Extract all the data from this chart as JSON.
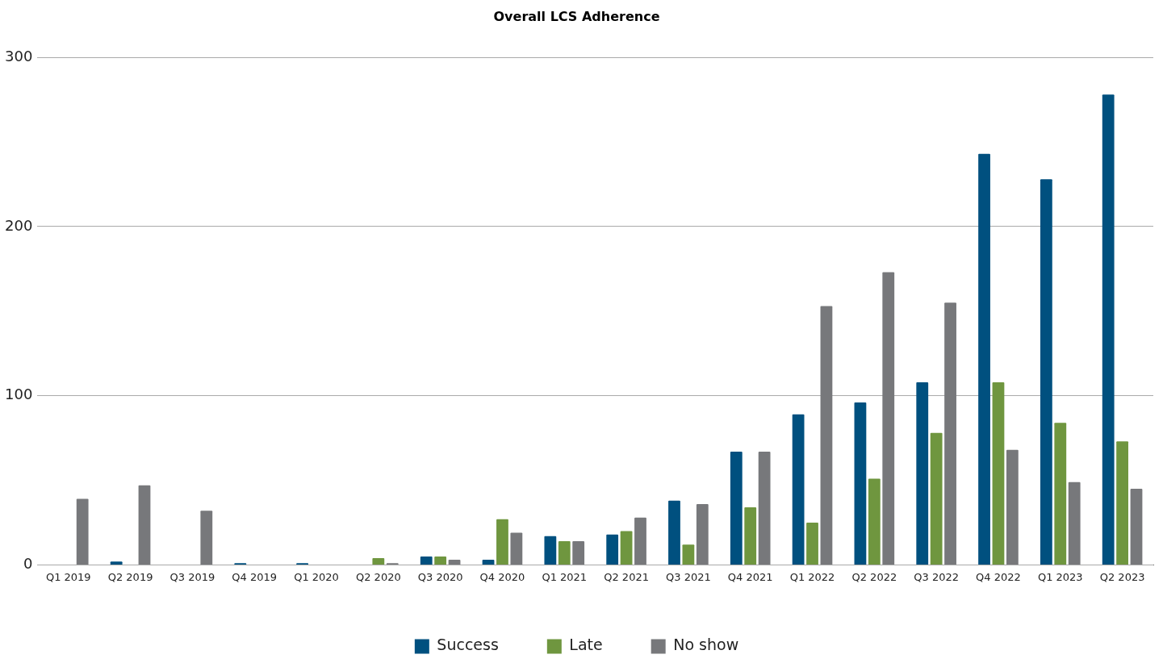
{
  "chart_data": {
    "type": "bar",
    "title": "Overall LCS Adherence",
    "categories": [
      "Q1 2019",
      "Q2 2019",
      "Q3 2019",
      "Q4 2019",
      "Q1 2020",
      "Q2 2020",
      "Q3 2020",
      "Q4 2020",
      "Q1 2021",
      "Q2 2021",
      "Q3 2021",
      "Q4 2021",
      "Q1 2022",
      "Q2 2022",
      "Q3 2022",
      "Q4 2022",
      "Q1 2023",
      "Q2 2023"
    ],
    "series": [
      {
        "name": "Success",
        "color": "#00507f",
        "values": [
          0,
          2,
          0,
          1,
          1,
          0,
          5,
          3,
          17,
          18,
          38,
          67,
          89,
          96,
          108,
          243,
          228,
          278
        ]
      },
      {
        "name": "Late",
        "color": "#6f963f",
        "values": [
          0,
          0,
          0,
          0,
          0,
          4,
          5,
          27,
          14,
          20,
          12,
          34,
          25,
          51,
          78,
          108,
          84,
          73
        ]
      },
      {
        "name": "No show",
        "color": "#77787b",
        "values": [
          39,
          47,
          32,
          0,
          0,
          1,
          3,
          19,
          14,
          28,
          36,
          67,
          153,
          173,
          155,
          68,
          49,
          45
        ]
      }
    ],
    "ylim": [
      0,
      300
    ],
    "yticks": [
      0,
      100,
      200,
      300
    ],
    "grid": "y",
    "legend": "bottom"
  }
}
